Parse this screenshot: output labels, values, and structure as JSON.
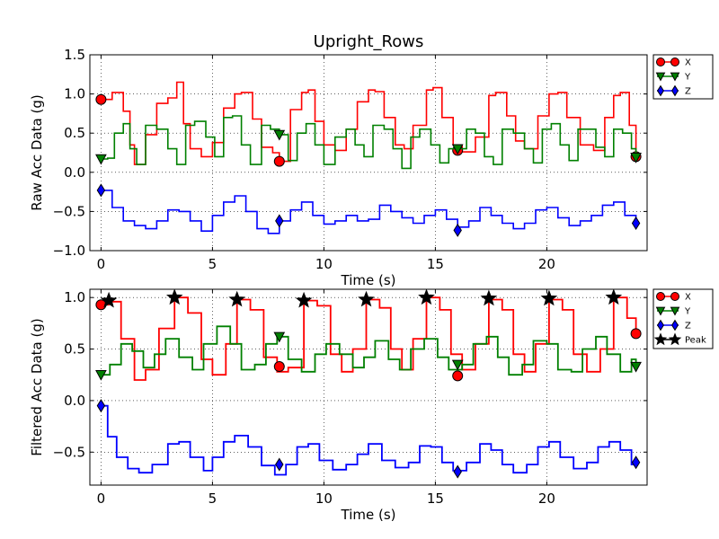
{
  "figure": {
    "title": "Upright_Rows"
  },
  "colors": {
    "X": "#ff0000",
    "Y": "#008000",
    "Z": "#0000ff",
    "Peak": "#000000",
    "grid": "#000000"
  },
  "chart_data": [
    {
      "type": "line",
      "xlabel": "Time (s)",
      "ylabel": "Raw Acc Data (g)",
      "xlim": [
        -0.5,
        24.5
      ],
      "ylim": [
        -1.0,
        1.5
      ],
      "xticks": [
        0,
        5,
        10,
        15,
        20
      ],
      "yticks": [
        -1.0,
        -0.5,
        0.0,
        0.5,
        1.0,
        1.5
      ],
      "tick_labels_x": [
        "0",
        "5",
        "10",
        "15",
        "20"
      ],
      "tick_labels_y": [
        "−1.0",
        "−0.5",
        "0.0",
        "0.5",
        "1.0",
        "1.5"
      ],
      "grid": true,
      "legend": {
        "placement": "outside-top-right",
        "entries": [
          "X",
          "Y",
          "Z"
        ]
      },
      "series": [
        {
          "name": "X",
          "marker": "circle",
          "x": [
            0,
            0.5,
            1,
            1.3,
            1.5,
            2,
            2.5,
            3,
            3.4,
            3.7,
            4,
            4.5,
            5,
            5.5,
            6,
            6.3,
            6.8,
            7.2,
            7.7,
            8,
            8.5,
            9,
            9.3,
            9.6,
            10,
            10.5,
            11,
            11.5,
            12,
            12.3,
            12.7,
            13.2,
            13.6,
            14,
            14.6,
            14.9,
            15.3,
            15.8,
            16.2,
            16.8,
            17.4,
            17.7,
            18.2,
            18.6,
            19,
            19.6,
            20.1,
            20.5,
            20.9,
            21.5,
            22.1,
            22.6,
            23,
            23.3,
            23.7,
            24
          ],
          "y": [
            0.93,
            1.02,
            0.78,
            0.35,
            0.1,
            0.48,
            0.88,
            0.95,
            1.15,
            0.62,
            0.3,
            0.2,
            0.38,
            0.82,
            1.0,
            1.02,
            0.68,
            0.32,
            0.25,
            0.14,
            0.8,
            1.02,
            1.05,
            0.65,
            0.35,
            0.28,
            0.55,
            0.9,
            1.05,
            1.03,
            0.7,
            0.35,
            0.3,
            0.6,
            1.05,
            1.08,
            0.7,
            0.35,
            0.26,
            0.45,
            0.98,
            1.02,
            0.72,
            0.4,
            0.3,
            0.72,
            1.0,
            1.02,
            0.7,
            0.35,
            0.28,
            0.7,
            0.98,
            1.02,
            0.6,
            0.2
          ],
          "markers": [
            [
              0,
              0.93
            ],
            [
              8,
              0.14
            ],
            [
              16,
              0.28
            ],
            [
              24,
              0.2
            ]
          ]
        },
        {
          "name": "Y",
          "marker": "triangle-down",
          "x": [
            0,
            0.3,
            0.6,
            1,
            1.3,
            1.6,
            2,
            2.5,
            3,
            3.4,
            3.8,
            4.2,
            4.7,
            5.1,
            5.5,
            5.9,
            6.3,
            6.7,
            7.2,
            7.6,
            8,
            8.4,
            8.8,
            9.2,
            9.6,
            10,
            10.5,
            11,
            11.4,
            11.8,
            12.2,
            12.7,
            13.1,
            13.5,
            13.9,
            14.3,
            14.8,
            15.2,
            15.6,
            16,
            16.4,
            16.8,
            17.2,
            17.6,
            18,
            18.5,
            19,
            19.4,
            19.8,
            20.2,
            20.6,
            21,
            21.4,
            21.8,
            22.2,
            22.6,
            23,
            23.4,
            23.8,
            24
          ],
          "y": [
            0.17,
            0.18,
            0.5,
            0.62,
            0.3,
            0.1,
            0.6,
            0.55,
            0.3,
            0.1,
            0.6,
            0.65,
            0.45,
            0.2,
            0.7,
            0.72,
            0.35,
            0.1,
            0.6,
            0.55,
            0.48,
            0.15,
            0.5,
            0.62,
            0.35,
            0.1,
            0.45,
            0.55,
            0.35,
            0.2,
            0.6,
            0.55,
            0.3,
            0.05,
            0.45,
            0.55,
            0.35,
            0.12,
            0.3,
            0.3,
            0.55,
            0.5,
            0.2,
            0.1,
            0.55,
            0.5,
            0.3,
            0.12,
            0.55,
            0.62,
            0.35,
            0.15,
            0.55,
            0.55,
            0.32,
            0.2,
            0.55,
            0.5,
            0.3,
            0.17
          ],
          "markers": [
            [
              0,
              0.17
            ],
            [
              8,
              0.48
            ],
            [
              16,
              0.3
            ],
            [
              24,
              0.19
            ]
          ]
        },
        {
          "name": "Z",
          "marker": "diamond",
          "x": [
            0,
            0.5,
            1,
            1.5,
            2,
            2.5,
            3,
            3.5,
            4,
            4.5,
            5,
            5.5,
            6,
            6.5,
            7,
            7.5,
            8,
            8.5,
            9,
            9.5,
            10,
            10.5,
            11,
            11.5,
            12,
            12.5,
            13,
            13.5,
            14,
            14.5,
            15,
            15.5,
            16,
            16.5,
            17,
            17.5,
            18,
            18.5,
            19,
            19.5,
            20,
            20.5,
            21,
            21.5,
            22,
            22.5,
            23,
            23.5,
            24
          ],
          "y": [
            -0.23,
            -0.45,
            -0.62,
            -0.68,
            -0.72,
            -0.62,
            -0.48,
            -0.5,
            -0.62,
            -0.75,
            -0.55,
            -0.38,
            -0.3,
            -0.5,
            -0.72,
            -0.78,
            -0.62,
            -0.48,
            -0.38,
            -0.55,
            -0.66,
            -0.62,
            -0.55,
            -0.62,
            -0.6,
            -0.42,
            -0.5,
            -0.58,
            -0.65,
            -0.55,
            -0.48,
            -0.6,
            -0.7,
            -0.62,
            -0.45,
            -0.55,
            -0.65,
            -0.72,
            -0.65,
            -0.48,
            -0.45,
            -0.58,
            -0.68,
            -0.62,
            -0.55,
            -0.42,
            -0.38,
            -0.55,
            -0.65
          ],
          "markers": [
            [
              0,
              -0.23
            ],
            [
              8,
              -0.62
            ],
            [
              16,
              -0.74
            ],
            [
              24,
              -0.65
            ]
          ]
        }
      ]
    },
    {
      "type": "line",
      "xlabel": "Time (s)",
      "ylabel": "Filtered Acc Data (g)",
      "xlim": [
        -0.5,
        24.5
      ],
      "ylim": [
        -0.82,
        1.08
      ],
      "xticks": [
        0,
        5,
        10,
        15,
        20
      ],
      "yticks": [
        -0.5,
        0.0,
        0.5,
        1.0
      ],
      "tick_labels_x": [
        "0",
        "5",
        "10",
        "15",
        "20"
      ],
      "tick_labels_y": [
        "−0.5",
        "0.0",
        "0.5",
        "1.0"
      ],
      "grid": true,
      "legend": {
        "placement": "outside-top-right",
        "entries": [
          "X",
          "Y",
          "Z",
          "Peak"
        ]
      },
      "series": [
        {
          "name": "X",
          "marker": "circle",
          "x": [
            0,
            0.35,
            0.9,
            1.5,
            2,
            2.6,
            3.3,
            3.9,
            4.5,
            5,
            5.6,
            6.1,
            6.7,
            7.3,
            7.9,
            8.4,
            9.1,
            9.7,
            10.3,
            10.8,
            11.3,
            11.9,
            12.5,
            13,
            13.5,
            14,
            14.6,
            15.2,
            15.7,
            16.2,
            16.8,
            17.4,
            18,
            18.5,
            19,
            19.5,
            20.1,
            20.7,
            21.2,
            21.8,
            22.4,
            23,
            23.6,
            24
          ],
          "y": [
            0.93,
            0.96,
            0.6,
            0.2,
            0.3,
            0.7,
            1.0,
            0.85,
            0.4,
            0.25,
            0.55,
            0.98,
            0.88,
            0.42,
            0.28,
            0.32,
            0.97,
            0.92,
            0.45,
            0.28,
            0.5,
            0.98,
            0.9,
            0.5,
            0.3,
            0.6,
            1.0,
            0.88,
            0.45,
            0.3,
            0.55,
            0.98,
            0.88,
            0.45,
            0.28,
            0.55,
            0.98,
            0.88,
            0.45,
            0.28,
            0.5,
            1.0,
            0.8,
            0.65
          ],
          "markers": [
            [
              0,
              0.93
            ],
            [
              8,
              0.33
            ],
            [
              16,
              0.24
            ],
            [
              24,
              0.65
            ]
          ]
        },
        {
          "name": "Y",
          "marker": "triangle-down",
          "x": [
            0,
            0.4,
            0.9,
            1.4,
            1.9,
            2.4,
            2.9,
            3.5,
            4.1,
            4.6,
            5.2,
            5.8,
            6.3,
            6.9,
            7.4,
            7.9,
            8.4,
            9,
            9.6,
            10.1,
            10.7,
            11.3,
            11.8,
            12.3,
            12.9,
            13.4,
            13.9,
            14.5,
            15.1,
            15.6,
            16.2,
            16.7,
            17.3,
            17.8,
            18.3,
            18.9,
            19.4,
            20,
            20.5,
            21.1,
            21.6,
            22.2,
            22.7,
            23.3,
            23.8,
            24
          ],
          "y": [
            0.25,
            0.35,
            0.55,
            0.48,
            0.32,
            0.45,
            0.6,
            0.42,
            0.3,
            0.55,
            0.72,
            0.55,
            0.3,
            0.35,
            0.55,
            0.62,
            0.4,
            0.28,
            0.45,
            0.55,
            0.45,
            0.32,
            0.42,
            0.58,
            0.4,
            0.3,
            0.5,
            0.6,
            0.42,
            0.3,
            0.35,
            0.55,
            0.62,
            0.42,
            0.25,
            0.35,
            0.58,
            0.55,
            0.3,
            0.28,
            0.5,
            0.62,
            0.45,
            0.28,
            0.4,
            0.32
          ],
          "markers": [
            [
              0,
              0.25
            ],
            [
              8,
              0.62
            ],
            [
              16,
              0.35
            ],
            [
              24,
              0.33
            ]
          ]
        },
        {
          "name": "Z",
          "marker": "diamond",
          "x": [
            0,
            0.3,
            0.7,
            1.2,
            1.7,
            2.3,
            3,
            3.5,
            4,
            4.6,
            5,
            5.5,
            6,
            6.6,
            7.2,
            7.8,
            8.3,
            8.8,
            9.3,
            9.8,
            10.4,
            11,
            11.5,
            12,
            12.6,
            13.2,
            13.8,
            14.3,
            14.8,
            15.3,
            15.8,
            16.4,
            17,
            17.5,
            18,
            18.5,
            19.1,
            19.6,
            20.1,
            20.6,
            21.2,
            21.8,
            22.3,
            22.8,
            23.3,
            23.8,
            24
          ],
          "y": [
            -0.05,
            -0.35,
            -0.55,
            -0.66,
            -0.7,
            -0.62,
            -0.42,
            -0.4,
            -0.55,
            -0.68,
            -0.55,
            -0.4,
            -0.34,
            -0.45,
            -0.63,
            -0.72,
            -0.62,
            -0.45,
            -0.42,
            -0.58,
            -0.67,
            -0.62,
            -0.52,
            -0.42,
            -0.58,
            -0.65,
            -0.6,
            -0.44,
            -0.45,
            -0.6,
            -0.68,
            -0.6,
            -0.42,
            -0.48,
            -0.62,
            -0.7,
            -0.62,
            -0.45,
            -0.4,
            -0.55,
            -0.66,
            -0.6,
            -0.45,
            -0.4,
            -0.48,
            -0.62,
            -0.6
          ],
          "markers": [
            [
              0,
              -0.05
            ],
            [
              8,
              -0.62
            ],
            [
              16,
              -0.69
            ],
            [
              24,
              -0.6
            ]
          ]
        },
        {
          "name": "Peak",
          "marker": "star",
          "points": [
            [
              0.35,
              0.97
            ],
            [
              3.3,
              1.0
            ],
            [
              6.1,
              0.98
            ],
            [
              9.1,
              0.97
            ],
            [
              11.9,
              0.98
            ],
            [
              14.6,
              1.0
            ],
            [
              17.4,
              0.99
            ],
            [
              20.1,
              0.99
            ],
            [
              23.0,
              1.0
            ]
          ]
        }
      ]
    }
  ]
}
